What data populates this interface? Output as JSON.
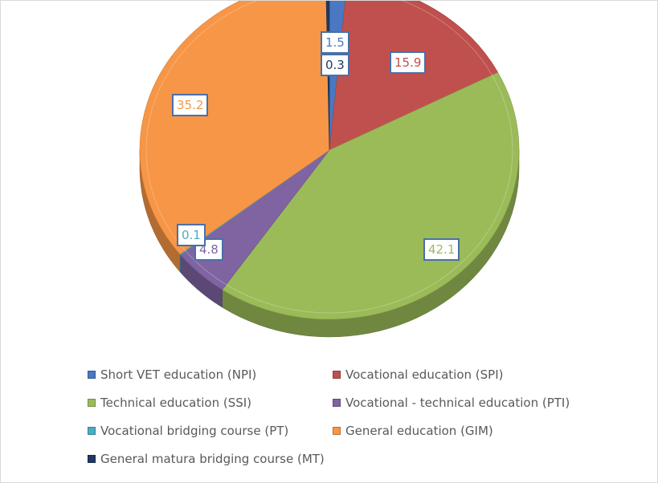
{
  "chart_data": {
    "type": "pie",
    "title": "",
    "series": [
      {
        "name": "Short VET education (NPI)",
        "value": 1.5,
        "color": "#4a78c2"
      },
      {
        "name": "Vocational education (SPI)",
        "value": 15.9,
        "color": "#c0504d"
      },
      {
        "name": "Technical education (SSI)",
        "value": 42.1,
        "color": "#9bbb59"
      },
      {
        "name": "Vocational - technical education (PTI)",
        "value": 4.8,
        "color": "#8064a2"
      },
      {
        "name": "Vocational bridging course (PT)",
        "value": 0.1,
        "color": "#4bacc6"
      },
      {
        "name": "General education (GIM)",
        "value": 35.2,
        "color": "#f79646"
      },
      {
        "name": "General matura bridging course (MT)",
        "value": 0.3,
        "color": "#1f3864"
      }
    ],
    "data_labels": [
      "1.5",
      "15.9",
      "42.1",
      "4.8",
      "0.1",
      "35.2",
      "0.3"
    ],
    "legend_position": "bottom"
  }
}
